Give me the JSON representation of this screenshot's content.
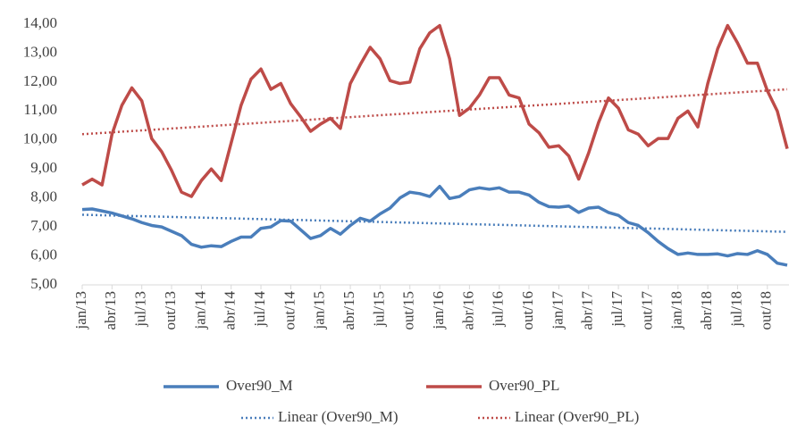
{
  "chart_data": {
    "type": "line",
    "categories": [
      "jan/13",
      null,
      null,
      "abr/13",
      null,
      null,
      "jul/13",
      null,
      null,
      "out/13",
      null,
      null,
      "jan/14",
      null,
      null,
      "abr/14",
      null,
      null,
      "jul/14",
      null,
      null,
      "out/14",
      null,
      null,
      "jan/15",
      null,
      null,
      "abr/15",
      null,
      null,
      "jul/15",
      null,
      null,
      "out/15",
      null,
      null,
      "jan/16",
      null,
      null,
      "abr/16",
      null,
      null,
      "jul/16",
      null,
      null,
      "out/16",
      null,
      null,
      "jan/17",
      null,
      null,
      "abr/17",
      null,
      null,
      "jul/17",
      null,
      null,
      "out/17",
      null,
      null,
      "jan/18",
      null,
      null,
      "abr/18",
      null,
      null,
      "jul/18",
      null,
      null,
      "out/18",
      null,
      null
    ],
    "series": [
      {
        "name": "Over90_M",
        "color": "#4a7ebb",
        "values": [
          7.6,
          7.62,
          7.55,
          7.48,
          7.38,
          7.28,
          7.15,
          7.05,
          7.0,
          6.85,
          6.7,
          6.4,
          6.3,
          6.35,
          6.32,
          6.5,
          6.65,
          6.65,
          6.95,
          7.0,
          7.22,
          7.2,
          6.9,
          6.6,
          6.7,
          6.95,
          6.75,
          7.05,
          7.3,
          7.2,
          7.45,
          7.65,
          8.0,
          8.2,
          8.15,
          8.05,
          8.4,
          7.98,
          8.05,
          8.28,
          8.35,
          8.3,
          8.35,
          8.2,
          8.2,
          8.1,
          7.85,
          7.7,
          7.68,
          7.72,
          7.5,
          7.65,
          7.68,
          7.5,
          7.4,
          7.15,
          7.05,
          6.8,
          6.5,
          6.25,
          6.05,
          6.1,
          6.05,
          6.05,
          6.07,
          6.0,
          6.08,
          6.05,
          6.18,
          6.05,
          5.75,
          5.68
        ]
      },
      {
        "name": "Over90_PL",
        "color": "#be4b48",
        "values": [
          8.45,
          8.65,
          8.45,
          10.2,
          11.2,
          11.8,
          11.35,
          10.05,
          9.6,
          8.95,
          8.2,
          8.05,
          8.6,
          9.0,
          8.6,
          9.9,
          11.2,
          12.1,
          12.45,
          11.75,
          11.95,
          11.25,
          10.8,
          10.3,
          10.55,
          10.75,
          10.4,
          11.95,
          12.6,
          13.2,
          12.8,
          12.05,
          11.95,
          12.0,
          13.15,
          13.7,
          13.95,
          12.8,
          10.85,
          11.1,
          11.55,
          12.15,
          12.15,
          11.55,
          11.45,
          10.55,
          10.25,
          9.75,
          9.8,
          9.45,
          8.65,
          9.55,
          10.6,
          11.45,
          11.1,
          10.35,
          10.2,
          9.8,
          10.05,
          10.05,
          10.75,
          11.0,
          10.45,
          11.95,
          13.15,
          13.95,
          13.35,
          12.65,
          12.65,
          11.7,
          11.0,
          9.7
        ]
      }
    ],
    "trendlines": [
      {
        "name": "Linear (Over90_M)",
        "color": "#4a7ebb",
        "values": [
          7.42,
          6.83
        ]
      },
      {
        "name": "Linear (Over90_PL)",
        "color": "#be4b48",
        "values": [
          10.2,
          11.75
        ]
      }
    ],
    "ylim": [
      5,
      14
    ],
    "yticks": [
      {
        "value": 5,
        "label": "5,00"
      },
      {
        "value": 6,
        "label": "6,00"
      },
      {
        "value": 7,
        "label": "7,00"
      },
      {
        "value": 8,
        "label": "8,00"
      },
      {
        "value": 9,
        "label": "9,00"
      },
      {
        "value": 10,
        "label": "10,00"
      },
      {
        "value": 11,
        "label": "11,00"
      },
      {
        "value": 12,
        "label": "12,00"
      },
      {
        "value": 13,
        "label": "13,00"
      },
      {
        "value": 14,
        "label": "14,00"
      }
    ]
  }
}
